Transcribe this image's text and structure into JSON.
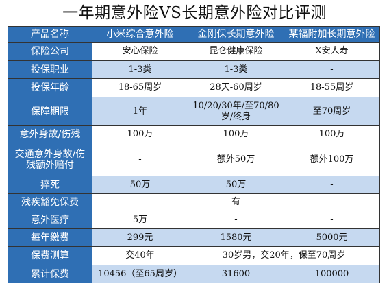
{
  "title": "一年期意外险VS长期意外险对比评测",
  "header": [
    "产品名称",
    "小米综合意外险",
    "金刚保长期意外险",
    "某福附加长期意外险"
  ],
  "rows": [
    {
      "label": "保险公司",
      "cells": [
        "安心保险",
        "昆仑健康保险",
        "X安人寿"
      ]
    },
    {
      "label": "投保职业",
      "cells": [
        "1-3类",
        "1-3类",
        "-"
      ]
    },
    {
      "label": "投保年龄",
      "cells": [
        "18-65周岁",
        "28天-60周岁",
        "18-55周岁"
      ]
    },
    {
      "label": "保障期限",
      "cells": [
        "1年",
        "10/20/30年/至70/80岁/终身",
        "至70周岁"
      ]
    },
    {
      "label": "意外身故/伤残",
      "cells": [
        "100万",
        "100万",
        "100万"
      ]
    },
    {
      "label": "交通意外身故/伤残额外赔付",
      "cells": [
        "-",
        "额外50万",
        "额外100万"
      ]
    },
    {
      "label": "猝死",
      "cells": [
        "50万",
        "50万",
        "-"
      ]
    },
    {
      "label": "残疾豁免保费",
      "cells": [
        "-",
        "有",
        "-"
      ]
    },
    {
      "label": "意外医疗",
      "cells": [
        "5万",
        "-",
        "-"
      ]
    },
    {
      "label": "每年缴费",
      "cells": [
        "299元",
        "1580元",
        "5000元"
      ]
    },
    {
      "label": "保费测算",
      "cells": [
        "交40年",
        "30岁男，交20年，保至70周岁"
      ]
    },
    {
      "label": "累计保费",
      "cells": [
        "10456（至65周岁）",
        "31600",
        "100000"
      ]
    }
  ]
}
